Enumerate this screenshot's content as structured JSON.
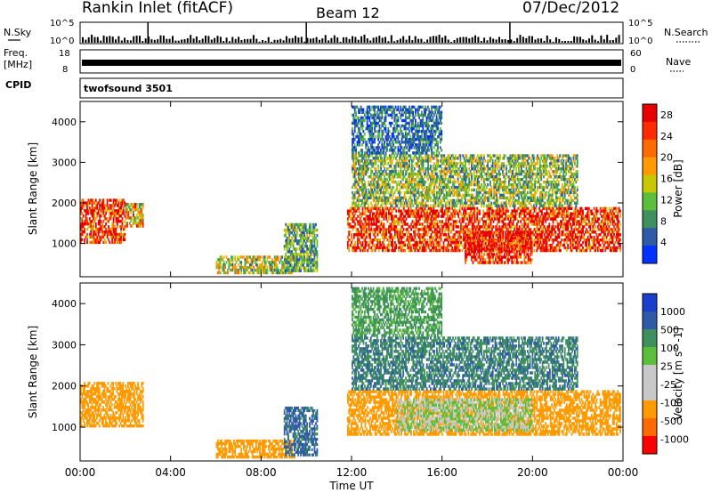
{
  "title": {
    "station": "Rankin Inlet (fitACF)",
    "beam": "Beam 12",
    "date": "07/Dec/2012"
  },
  "strip_labels": {
    "nsky": "N.Sky",
    "nsky_ticks": [
      "10^5",
      "10^0"
    ],
    "nsearch": "N.Search",
    "nsearch_ticks": [
      "10^5",
      "10^0"
    ],
    "freq": "Freq.",
    "freq_unit": "[MHz]",
    "freq_ticks": [
      "18",
      "8"
    ],
    "nave": "Nave",
    "nave_ticks": [
      "60",
      "0"
    ],
    "cpid": "CPID",
    "cpid_value": "twofsound 3501"
  },
  "colors": {
    "power": [
      "#0033ff",
      "#2f5aa8",
      "#3f8f5f",
      "#5bbf3c",
      "#c8c800",
      "#ff9a00",
      "#ff6a00",
      "#ff2a00",
      "#e60000"
    ],
    "velocity": [
      "#ff0000",
      "#ff6a00",
      "#ff9a00",
      "#c8c8c8",
      "#c8c8c8",
      "#5bbf3c",
      "#3f8f5f",
      "#2f5aa8",
      "#1a3fcc"
    ]
  },
  "chart_data": [
    {
      "type": "heatmap",
      "name": "power",
      "ylabel": "Slant Range [km]",
      "xlim_hours": [
        0,
        24
      ],
      "ylim_km": [
        180,
        4500
      ],
      "y_ticks": [
        1000,
        2000,
        3000,
        4000
      ],
      "colorbar": {
        "label": "Power [dB]",
        "ticks": [
          4,
          8,
          12,
          16,
          20,
          24,
          28
        ],
        "range": [
          0,
          30
        ]
      },
      "echo_regions": [
        {
          "t0": 0.0,
          "t1": 2.0,
          "r0": 1000,
          "r1": 2100,
          "level": 26
        },
        {
          "t0": 2.0,
          "t1": 2.8,
          "r0": 1400,
          "r1": 2000,
          "level": 18
        },
        {
          "t0": 6.0,
          "t1": 9.5,
          "r0": 250,
          "r1": 700,
          "level": 14
        },
        {
          "t0": 9.0,
          "t1": 10.5,
          "r0": 300,
          "r1": 1500,
          "level": 10
        },
        {
          "t0": 11.8,
          "t1": 23.9,
          "r0": 800,
          "r1": 1900,
          "level": 27
        },
        {
          "t0": 17.0,
          "t1": 20.0,
          "r0": 500,
          "r1": 1300,
          "level": 29
        },
        {
          "t0": 12.0,
          "t1": 22.0,
          "r0": 1900,
          "r1": 3200,
          "level": 12
        },
        {
          "t0": 12.0,
          "t1": 16.0,
          "r0": 3200,
          "r1": 4400,
          "level": 6
        }
      ]
    },
    {
      "type": "heatmap",
      "name": "velocity",
      "ylabel": "Slant Range [km]",
      "xlabel": "Time UT",
      "xlim_hours": [
        0,
        24
      ],
      "ylim_km": [
        180,
        4500
      ],
      "y_ticks": [
        1000,
        2000,
        3000,
        4000
      ],
      "x_ticks": [
        "00:00",
        "04:00",
        "08:00",
        "12:00",
        "16:00",
        "20:00",
        "00:00"
      ],
      "colorbar": {
        "label": "Velocity [m s^-1]",
        "ticks": [
          -1000,
          -500,
          -100,
          -25,
          25,
          100,
          500,
          1000
        ]
      },
      "echo_regions": [
        {
          "t0": 0.0,
          "t1": 2.8,
          "r0": 1000,
          "r1": 2100,
          "level": -200
        },
        {
          "t0": 6.0,
          "t1": 9.5,
          "r0": 250,
          "r1": 700,
          "level": -150
        },
        {
          "t0": 9.0,
          "t1": 10.5,
          "r0": 300,
          "r1": 1500,
          "level": 120
        },
        {
          "t0": 11.8,
          "t1": 23.9,
          "r0": 800,
          "r1": 1900,
          "level": -150
        },
        {
          "t0": 14.0,
          "t1": 20.0,
          "r0": 900,
          "r1": 1700,
          "level": 0
        },
        {
          "t0": 12.0,
          "t1": 22.0,
          "r0": 1900,
          "r1": 3200,
          "level": 90
        },
        {
          "t0": 12.0,
          "t1": 16.0,
          "r0": 3200,
          "r1": 4400,
          "level": 30
        }
      ]
    }
  ]
}
